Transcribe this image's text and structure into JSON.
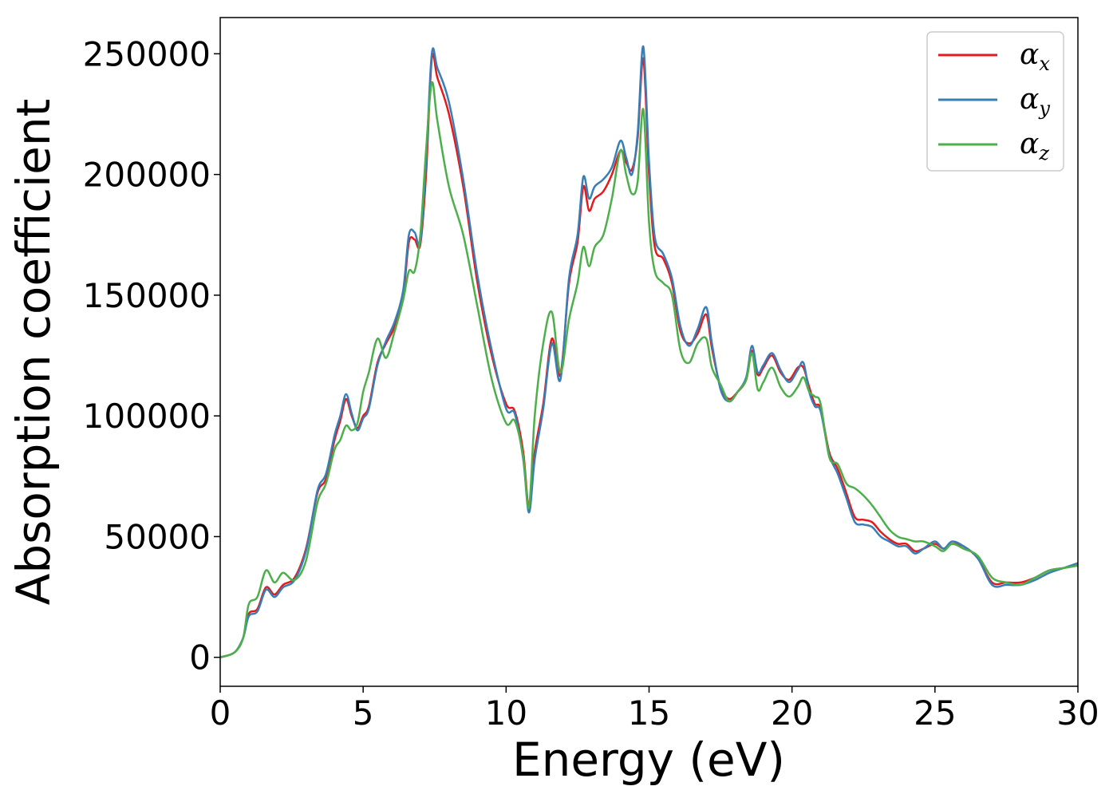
{
  "chart_data": {
    "type": "line",
    "xlabel": "Energy (eV)",
    "ylabel": "Absorption coefficient",
    "xlim": [
      0,
      30
    ],
    "ylim": [
      -12000,
      265000
    ],
    "xticks": [
      0,
      5,
      10,
      15,
      20,
      25,
      30
    ],
    "xtick_labels": [
      "0",
      "5",
      "10",
      "15",
      "20",
      "25",
      "30"
    ],
    "yticks": [
      0,
      50000,
      100000,
      150000,
      200000,
      250000
    ],
    "ytick_labels": [
      "0",
      "50000",
      "100000",
      "150000",
      "200000",
      "250000"
    ],
    "grid": false,
    "legend_position": "top-right",
    "series": [
      {
        "name": "α_x",
        "symbol": "α",
        "subscript": "x",
        "color": "#e41a1c",
        "x": [
          0,
          0.5,
          0.8,
          1.0,
          1.3,
          1.6,
          1.9,
          2.2,
          2.6,
          3.0,
          3.4,
          3.7,
          4.0,
          4.2,
          4.4,
          4.6,
          4.8,
          5.0,
          5.2,
          5.5,
          5.8,
          6.1,
          6.4,
          6.6,
          6.8,
          7.0,
          7.2,
          7.4,
          7.6,
          8.0,
          8.5,
          9.0,
          9.5,
          10.0,
          10.3,
          10.6,
          10.8,
          11.0,
          11.3,
          11.6,
          11.9,
          12.2,
          12.5,
          12.7,
          12.9,
          13.1,
          13.4,
          13.7,
          14.0,
          14.2,
          14.4,
          14.6,
          14.8,
          15.0,
          15.2,
          15.5,
          15.8,
          16.1,
          16.4,
          16.7,
          17.0,
          17.2,
          17.5,
          17.8,
          18.1,
          18.4,
          18.6,
          18.8,
          19.0,
          19.3,
          19.6,
          19.9,
          20.2,
          20.4,
          20.6,
          20.8,
          21.0,
          21.3,
          21.6,
          21.9,
          22.2,
          22.5,
          22.8,
          23.1,
          23.4,
          23.7,
          24.0,
          24.3,
          24.6,
          25.0,
          25.3,
          25.6,
          26.0,
          26.5,
          27.0,
          27.5,
          28.0,
          28.5,
          29.0,
          29.5,
          30.0
        ],
        "y": [
          0,
          2000,
          8000,
          18000,
          20000,
          29000,
          26000,
          30000,
          33000,
          45000,
          68000,
          74000,
          90000,
          98000,
          107000,
          100000,
          95000,
          100000,
          104000,
          122000,
          130000,
          137000,
          150000,
          172000,
          173000,
          171000,
          200000,
          248000,
          240000,
          225000,
          195000,
          155000,
          125000,
          105000,
          102000,
          85000,
          62000,
          85000,
          105000,
          132000,
          117000,
          155000,
          172000,
          195000,
          185000,
          190000,
          193000,
          200000,
          210000,
          205000,
          202000,
          215000,
          248000,
          200000,
          170000,
          165000,
          155000,
          135000,
          130000,
          134000,
          142000,
          128000,
          112000,
          107000,
          110000,
          115000,
          127000,
          117000,
          120000,
          125000,
          118000,
          115000,
          120000,
          120000,
          112000,
          105000,
          103000,
          85000,
          78000,
          68000,
          58000,
          57000,
          56000,
          52000,
          49000,
          47000,
          47000,
          44000,
          45000,
          47000,
          45000,
          47000,
          46000,
          41000,
          31000,
          31000,
          31000,
          33000,
          36000,
          37000,
          38000
        ]
      },
      {
        "name": "α_y",
        "symbol": "α",
        "subscript": "y",
        "color": "#377eb8",
        "x": [
          0,
          0.5,
          0.8,
          1.0,
          1.3,
          1.6,
          1.9,
          2.2,
          2.6,
          3.0,
          3.4,
          3.7,
          4.0,
          4.2,
          4.4,
          4.6,
          4.8,
          5.0,
          5.2,
          5.5,
          5.8,
          6.1,
          6.4,
          6.6,
          6.8,
          7.0,
          7.2,
          7.4,
          7.6,
          8.0,
          8.5,
          9.0,
          9.5,
          10.0,
          10.3,
          10.6,
          10.8,
          11.0,
          11.3,
          11.6,
          11.9,
          12.2,
          12.5,
          12.7,
          12.9,
          13.1,
          13.4,
          13.7,
          14.0,
          14.2,
          14.4,
          14.6,
          14.8,
          15.0,
          15.2,
          15.5,
          15.8,
          16.1,
          16.4,
          16.7,
          17.0,
          17.2,
          17.5,
          17.8,
          18.1,
          18.4,
          18.6,
          18.8,
          19.0,
          19.3,
          19.6,
          19.9,
          20.2,
          20.4,
          20.6,
          20.8,
          21.0,
          21.3,
          21.6,
          21.9,
          22.2,
          22.5,
          22.8,
          23.1,
          23.4,
          23.7,
          24.0,
          24.3,
          24.6,
          25.0,
          25.3,
          25.6,
          26.0,
          26.5,
          27.0,
          27.5,
          28.0,
          28.5,
          29.0,
          29.5,
          30.0
        ],
        "y": [
          0,
          2000,
          8000,
          17000,
          19000,
          28000,
          25000,
          29000,
          32000,
          44000,
          69000,
          76000,
          92000,
          100000,
          109000,
          101000,
          94000,
          99000,
          103000,
          121000,
          131000,
          139000,
          152000,
          175000,
          176000,
          172000,
          205000,
          250000,
          244000,
          230000,
          198000,
          158000,
          127000,
          103000,
          101000,
          82000,
          60000,
          82000,
          103000,
          130000,
          115000,
          157000,
          175000,
          199000,
          190000,
          195000,
          198000,
          203000,
          214000,
          207000,
          200000,
          217000,
          253000,
          205000,
          174000,
          167000,
          157000,
          137000,
          129000,
          136000,
          145000,
          130000,
          111000,
          106000,
          110000,
          116000,
          129000,
          118000,
          121000,
          126000,
          119000,
          114000,
          119000,
          122000,
          110000,
          104000,
          102000,
          84000,
          76000,
          66000,
          56000,
          55000,
          54000,
          50000,
          48000,
          46000,
          46000,
          43000,
          45000,
          48000,
          45000,
          48000,
          46000,
          41000,
          30000,
          30000,
          30000,
          32000,
          35000,
          37000,
          39000
        ]
      },
      {
        "name": "α_z",
        "symbol": "α",
        "subscript": "z",
        "color": "#4daf4a",
        "x": [
          0,
          0.5,
          0.8,
          1.0,
          1.3,
          1.6,
          1.9,
          2.2,
          2.6,
          3.0,
          3.4,
          3.7,
          4.0,
          4.2,
          4.4,
          4.6,
          4.8,
          5.0,
          5.2,
          5.5,
          5.8,
          6.1,
          6.4,
          6.6,
          6.8,
          7.0,
          7.2,
          7.4,
          7.6,
          8.0,
          8.5,
          9.0,
          9.5,
          10.0,
          10.3,
          10.6,
          10.8,
          11.0,
          11.3,
          11.6,
          11.9,
          12.2,
          12.5,
          12.7,
          12.9,
          13.1,
          13.4,
          13.7,
          14.0,
          14.2,
          14.4,
          14.6,
          14.8,
          15.0,
          15.2,
          15.5,
          15.8,
          16.1,
          16.4,
          16.7,
          17.0,
          17.2,
          17.5,
          17.8,
          18.1,
          18.4,
          18.6,
          18.8,
          19.0,
          19.3,
          19.6,
          19.9,
          20.2,
          20.4,
          20.6,
          20.8,
          21.0,
          21.3,
          21.6,
          21.9,
          22.2,
          22.5,
          22.8,
          23.1,
          23.4,
          23.7,
          24.0,
          24.3,
          24.6,
          25.0,
          25.3,
          25.6,
          26.0,
          26.5,
          27.0,
          27.5,
          28.0,
          28.5,
          29.0,
          29.5,
          30.0
        ],
        "y": [
          0,
          2000,
          8000,
          22000,
          25000,
          36000,
          31000,
          35000,
          32000,
          40000,
          64000,
          72000,
          86000,
          90000,
          96000,
          94000,
          97000,
          110000,
          118000,
          132000,
          124000,
          135000,
          148000,
          160000,
          160000,
          175000,
          210000,
          238000,
          222000,
          195000,
          175000,
          145000,
          115000,
          97000,
          98000,
          83000,
          62000,
          100000,
          130000,
          143000,
          118000,
          140000,
          155000,
          170000,
          162000,
          170000,
          175000,
          190000,
          210000,
          200000,
          192000,
          197000,
          227000,
          180000,
          160000,
          155000,
          150000,
          127000,
          122000,
          130000,
          132000,
          120000,
          113000,
          106000,
          110000,
          115000,
          126000,
          111000,
          114000,
          120000,
          112000,
          108000,
          112000,
          116000,
          110000,
          108000,
          105000,
          83000,
          80000,
          72000,
          70000,
          67000,
          63000,
          58000,
          53000,
          50000,
          49000,
          48000,
          48000,
          46000,
          44000,
          47000,
          45000,
          42000,
          33000,
          31000,
          30000,
          33000,
          36000,
          37000,
          38000
        ]
      }
    ]
  }
}
